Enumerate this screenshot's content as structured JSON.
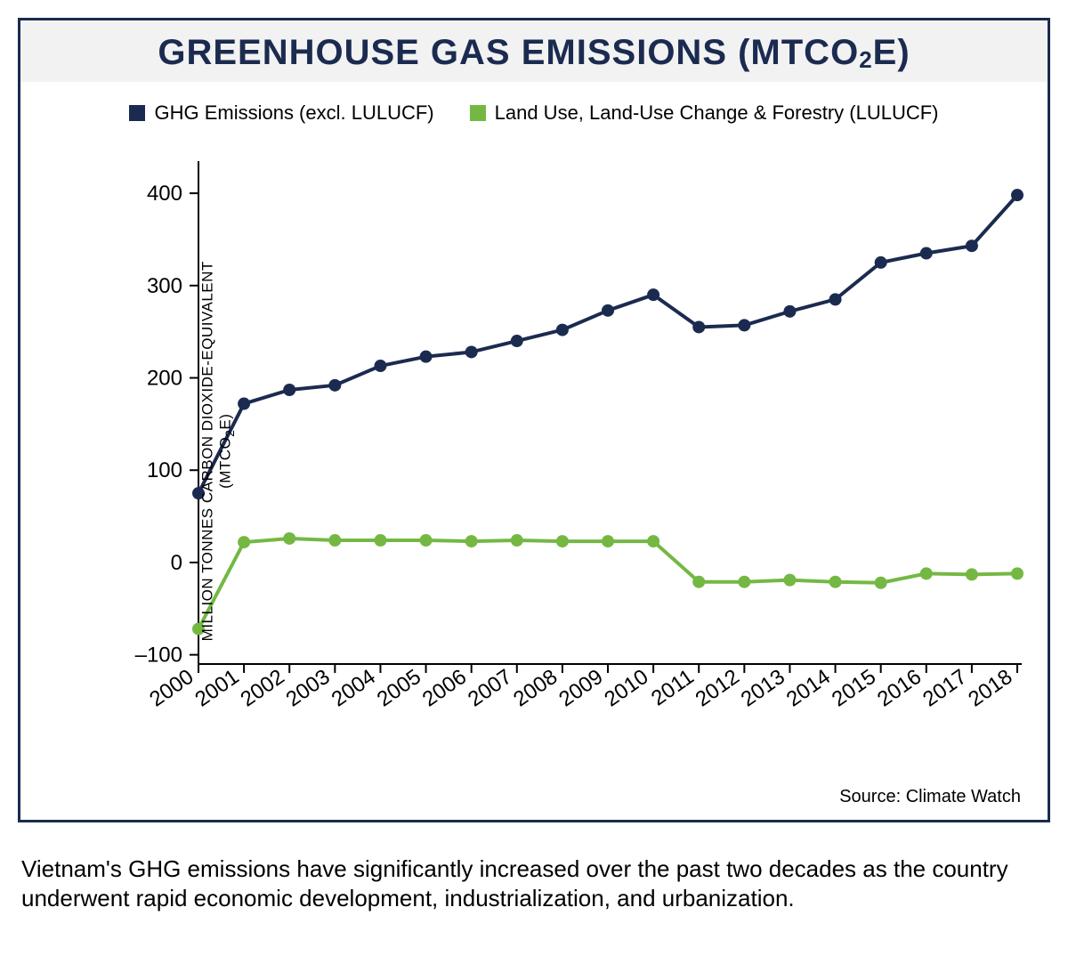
{
  "chart": {
    "title_html": "GREENHOUSE GAS EMISSIONS (MTCO<sub>2</sub>E)",
    "border_color": "#1b2b50",
    "title_color": "#1b2b50",
    "title_bg": "#f2f2f2",
    "title_fontsize": 40,
    "background_color": "#ffffff",
    "legend": [
      {
        "label": "GHG Emissions (excl. LULUCF)",
        "color": "#1b2b50"
      },
      {
        "label": "Land Use, Land-Use Change & Forestry (LULUCF)",
        "color": "#74b843"
      }
    ],
    "legend_fontsize": 22,
    "y_axis_label_html": "MILLION TONNES CARBON DIOXIDE-EQUIVALENT<br>(MTCO<sub class=\"sub\">2</sub>E)",
    "y_axis_label_fontsize": 17,
    "x_labels": [
      "2000",
      "2001",
      "2002",
      "2003",
      "2004",
      "2005",
      "2006",
      "2007",
      "2008",
      "2009",
      "2010",
      "2011",
      "2012",
      "2013",
      "2014",
      "2015",
      "2016",
      "2017",
      "2018"
    ],
    "y_ticks": [
      -100,
      0,
      100,
      200,
      300,
      400
    ],
    "y_tick_labels": [
      "–100",
      "0",
      "100",
      "200",
      "300",
      "400"
    ],
    "ylim": [
      -110,
      430
    ],
    "series": [
      {
        "name": "ghg_excl_lulucf",
        "color": "#1b2b50",
        "line_width": 4,
        "marker_radius": 7,
        "values": [
          75,
          172,
          187,
          192,
          213,
          223,
          228,
          240,
          252,
          273,
          290,
          255,
          257,
          272,
          285,
          325,
          335,
          343,
          398
        ]
      },
      {
        "name": "lulucf",
        "color": "#74b843",
        "line_width": 4,
        "marker_radius": 7,
        "values": [
          -72,
          22,
          26,
          24,
          24,
          24,
          23,
          24,
          23,
          23,
          23,
          -21,
          -21,
          -19,
          -21,
          -22,
          -12,
          -13,
          -12
        ]
      }
    ],
    "axis_color": "#000000",
    "tick_fontsize": 24,
    "x_label_fontsize": 24,
    "x_label_rotation": -35,
    "source": "Source: Climate Watch",
    "source_fontsize": 20
  },
  "caption": "Vietnam's GHG emissions have significantly increased over the past two decades as the country underwent rapid economic development, industrialization, and urbanization.",
  "caption_fontsize": 26
}
